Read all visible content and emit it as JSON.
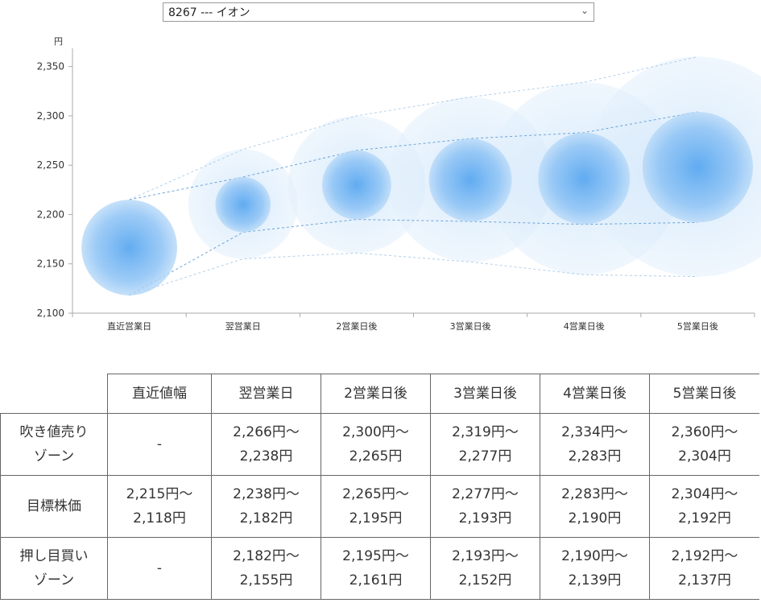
{
  "selector": {
    "value": "8267 --- イオン",
    "chevron": "chevron-down-icon"
  },
  "chart_data": {
    "type": "bubble",
    "unit": "円",
    "categories": [
      "直近営業日",
      "翌営業日",
      "2営業日後",
      "3営業日後",
      "4営業日後",
      "5営業日後"
    ],
    "y_ticks": [
      "2,350",
      "2,300",
      "2,250",
      "2,200",
      "2,150",
      "2,100"
    ],
    "ylim": [
      2100,
      2375
    ],
    "sell_zone_upper": [
      null,
      2266,
      2300,
      2319,
      2334,
      2360
    ],
    "target_upper": [
      2215,
      2238,
      2265,
      2277,
      2283,
      2304
    ],
    "target_lower": [
      2118,
      2182,
      2195,
      2193,
      2190,
      2192
    ],
    "buy_zone_lower": [
      null,
      2155,
      2161,
      2152,
      2139,
      2137
    ],
    "colors": {
      "core": "#5aa8f0",
      "halo": "#d6e9fb",
      "line": "#7fb0e0",
      "axis": "#999999"
    },
    "grid": false
  },
  "table": {
    "headers": [
      "",
      "直近値幅",
      "翌営業日",
      "2営業日後",
      "3営業日後",
      "4営業日後",
      "5営業日後"
    ],
    "rows": [
      {
        "label": [
          "吹き値売り",
          "ゾーン"
        ],
        "cells": [
          [
            "-"
          ],
          [
            "2,266円～",
            "2,238円"
          ],
          [
            "2,300円～",
            "2,265円"
          ],
          [
            "2,319円～",
            "2,277円"
          ],
          [
            "2,334円～",
            "2,283円"
          ],
          [
            "2,360円～",
            "2,304円"
          ]
        ]
      },
      {
        "label": [
          "目標株価"
        ],
        "cells": [
          [
            "2,215円～",
            "2,118円"
          ],
          [
            "2,238円～",
            "2,182円"
          ],
          [
            "2,265円～",
            "2,195円"
          ],
          [
            "2,277円～",
            "2,193円"
          ],
          [
            "2,283円～",
            "2,190円"
          ],
          [
            "2,304円～",
            "2,192円"
          ]
        ]
      },
      {
        "label": [
          "押し目買い",
          "ゾーン"
        ],
        "cells": [
          [
            "-"
          ],
          [
            "2,182円～",
            "2,155円"
          ],
          [
            "2,195円～",
            "2,161円"
          ],
          [
            "2,193円～",
            "2,152円"
          ],
          [
            "2,190円～",
            "2,139円"
          ],
          [
            "2,192円～",
            "2,137円"
          ]
        ]
      }
    ]
  }
}
